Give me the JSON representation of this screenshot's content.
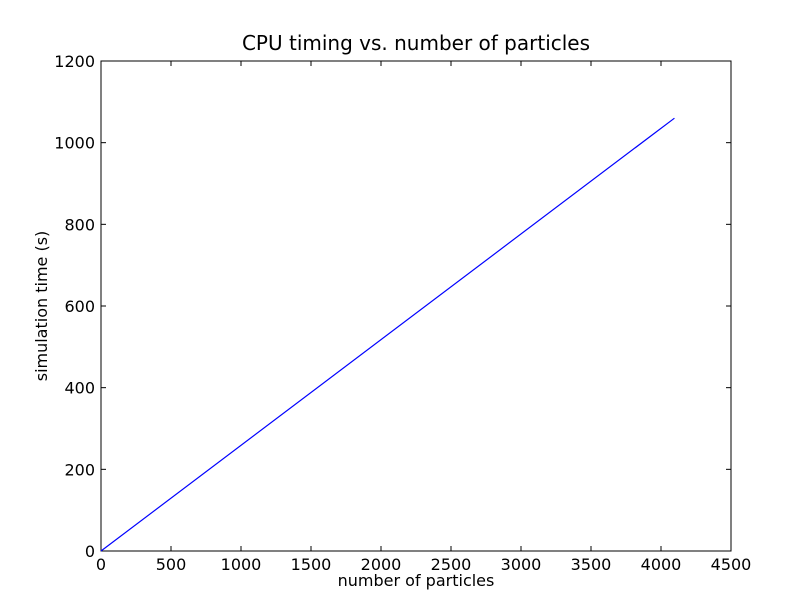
{
  "chart_data": {
    "type": "line",
    "title": "CPU timing vs. number of particles",
    "xlabel": "number of particles",
    "ylabel": "simulation time (s)",
    "xlim": [
      0,
      4500
    ],
    "ylim": [
      0,
      1200
    ],
    "xticks": [
      0,
      500,
      1000,
      1500,
      2000,
      2500,
      3000,
      3500,
      4000,
      4500
    ],
    "yticks": [
      0,
      200,
      400,
      600,
      800,
      1000,
      1200
    ],
    "grid": false,
    "legend": "none",
    "series": [
      {
        "color": "#0000ff",
        "x": [
          0,
          4096
        ],
        "y": [
          0,
          1060
        ]
      }
    ]
  }
}
